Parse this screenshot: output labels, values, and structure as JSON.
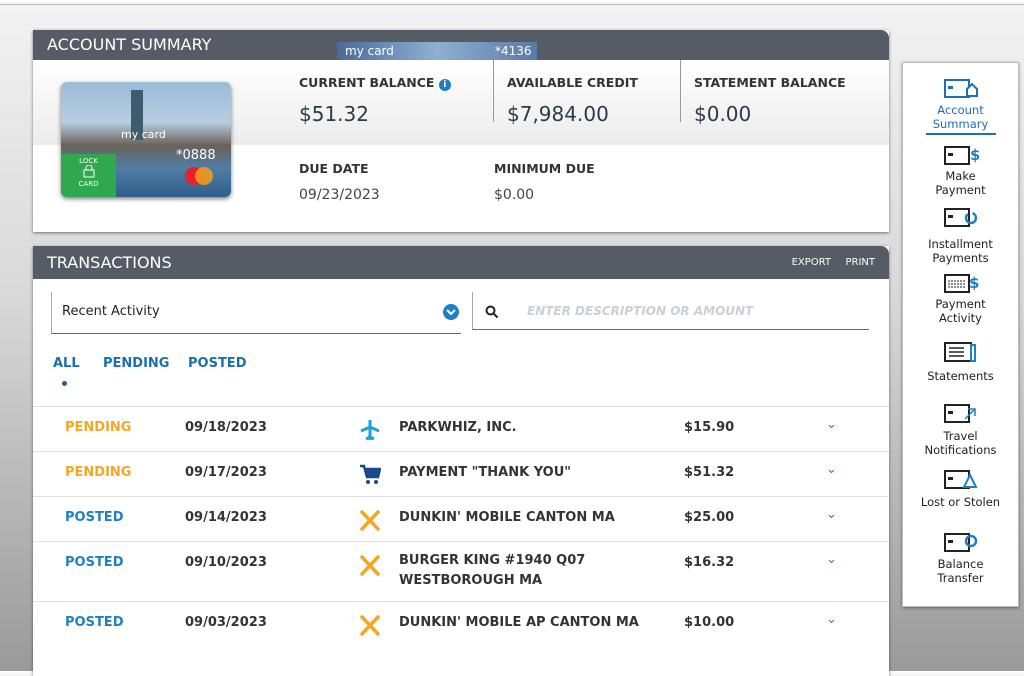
{
  "account_summary": {
    "title": "ACCOUNT SUMMARY",
    "card_tab": {
      "name": "my card",
      "number": "*4136"
    },
    "card": {
      "name": "my card",
      "number": "*0888",
      "lock": "LOCK",
      "lock_sub": "CARD"
    },
    "fields": [
      {
        "label": "CURRENT BALANCE",
        "value": "$51.32"
      },
      {
        "label": "AVAILABLE CREDIT",
        "value": "$7,984.00"
      },
      {
        "label": "STATEMENT BALANCE",
        "value": "$0.00"
      },
      {
        "label": "DUE DATE",
        "value": "09/23/2023"
      },
      {
        "label": "MINIMUM DUE",
        "value": "$0.00"
      }
    ]
  },
  "transactions": {
    "title": "TRANSACTIONS",
    "actions": [
      "EXPORT",
      "PRINT"
    ],
    "filter": "Recent Activity",
    "search_placeholder": "ENTER DESCRIPTION OR AMOUNT",
    "tabs": [
      "ALL",
      "PENDING",
      "POSTED"
    ],
    "rows": [
      {
        "status": "PENDING",
        "date": "09/18/2023",
        "description": "PARKWHIZ, INC.",
        "amount": "$15.90"
      },
      {
        "status": "PENDING",
        "date": "09/17/2023",
        "description": "PAYMENT \"THANK YOU\"",
        "amount": "$51.32"
      },
      {
        "status": "POSTED",
        "date": "09/14/2023",
        "description": "DUNKIN' MOBILE CANTON MA",
        "amount": "$25.00"
      },
      {
        "status": "POSTED",
        "date": "09/10/2023",
        "description": "BURGER KING #1940 Q07 WESTBOROUGH MA",
        "amount": "$16.32"
      },
      {
        "status": "POSTED",
        "date": "09/03/2023",
        "description": "DUNKIN' MOBILE AP CANTON MA",
        "amount": "$10.00"
      }
    ]
  },
  "sidebar": {
    "items": [
      "Account Summary",
      "Make Payment",
      "Installment Payments",
      "Payment Activity",
      "Statements",
      "Travel Notifications",
      "Lost or Stolen",
      "Balance Transfer"
    ]
  }
}
